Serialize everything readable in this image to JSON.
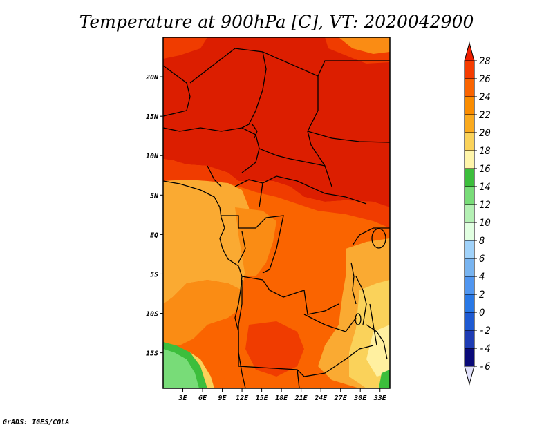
{
  "title": "Temperature at 900hPa [C], VT: 2020042900",
  "credit": "GrADS: IGES/COLA",
  "map": {
    "x_ticks": [
      "3E",
      "6E",
      "9E",
      "12E",
      "15E",
      "18E",
      "21E",
      "24E",
      "27E",
      "30E",
      "33E"
    ],
    "x_tick_lon": [
      3,
      6,
      9,
      12,
      15,
      18,
      21,
      24,
      27,
      30,
      33
    ],
    "y_ticks": [
      "20N",
      "15N",
      "10N",
      "5N",
      "EQ",
      "5S",
      "10S",
      "15S"
    ],
    "y_tick_lat": [
      20,
      15,
      10,
      5,
      0,
      -5,
      -10,
      -15
    ],
    "lon_range": [
      0,
      34.5
    ],
    "lat_range": [
      -19.5,
      25
    ]
  },
  "colorbar": {
    "levels": [
      "28",
      "26",
      "24",
      "22",
      "20",
      "18",
      "16",
      "14",
      "12",
      "10",
      "8",
      "6",
      "4",
      "2",
      "0",
      "-2",
      "-4",
      "-6"
    ],
    "colors": [
      "#f01e00",
      "#f53c00",
      "#fa6400",
      "#fa8c00",
      "#faaa1e",
      "#fad25a",
      "#fff5aa",
      "#f0fac8",
      "#3cbe3c",
      "#78dc78",
      "#b4f0b4",
      "#e1ffe1",
      "#c8e6fa",
      "#a0d2fa",
      "#78b4f0",
      "#5096f0",
      "#2878e6",
      "#1e5ad2",
      "#1e3cb4",
      "#0a0a78",
      "#e1e1fa"
    ],
    "bins": [
      {
        "color": "#f01e00",
        "range": "> 28"
      },
      {
        "color": "#f53c00",
        "range": "26-28"
      },
      {
        "color": "#fa6400",
        "range": "24-26"
      },
      {
        "color": "#fa8c00",
        "range": "22-24"
      },
      {
        "color": "#faaa1e",
        "range": "20-22"
      },
      {
        "color": "#fad25a",
        "range": "18-20"
      },
      {
        "color": "#fff5aa",
        "range": "16-18"
      },
      {
        "color": "#3cbe3c",
        "range": "14-16"
      },
      {
        "color": "#78dc78",
        "range": "12-14"
      },
      {
        "color": "#b4f0b4",
        "range": "10-12"
      },
      {
        "color": "#e1ffe1",
        "range": "8-10"
      },
      {
        "color": "#a0d2fa",
        "range": "6-8"
      },
      {
        "color": "#78b4f0",
        "range": "4-6"
      },
      {
        "color": "#5096f0",
        "range": "2-4"
      },
      {
        "color": "#2878e6",
        "range": "0-2"
      },
      {
        "color": "#1e5ad2",
        "range": "-2-0"
      },
      {
        "color": "#1e3cb4",
        "range": "-4--2"
      },
      {
        "color": "#0a0a78",
        "range": "-6--4"
      },
      {
        "color": "#e1e1fa",
        "range": "< -6"
      }
    ]
  },
  "field_colors": {
    "c28": "#dc1e00",
    "c26": "#f03c00",
    "c24": "#fa6400",
    "c22": "#fa8c14",
    "c20": "#faaa32",
    "c18": "#fad25a",
    "c16": "#fff0a0",
    "c14": "#3cbe3c",
    "c12": "#78dc78"
  }
}
